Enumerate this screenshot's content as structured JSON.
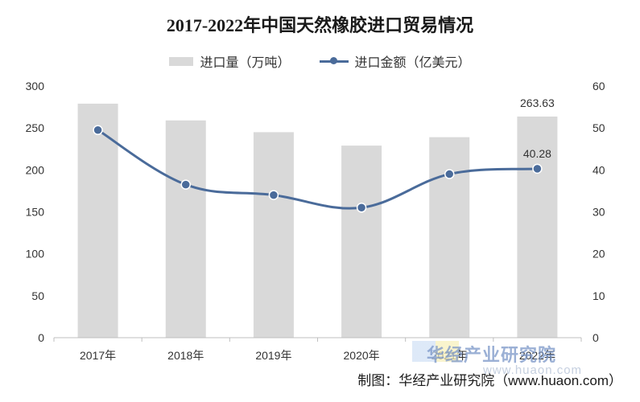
{
  "chart_data": {
    "type": "bar",
    "title": "2017-2022年中国天然橡胶进口贸易情况",
    "categories": [
      "2017年",
      "2018年",
      "2019年",
      "2020年",
      "2021年",
      "2022年"
    ],
    "series": [
      {
        "name": "进口量（万吨）",
        "type": "bar",
        "axis": "left",
        "values": [
          279,
          259,
          245,
          229,
          239,
          263.63
        ],
        "color": "#d9d9d9"
      },
      {
        "name": "进口金额（亿美元）",
        "type": "line",
        "axis": "right",
        "values": [
          49.5,
          36.5,
          34,
          31,
          39,
          40.28
        ],
        "color": "#4a6b9a"
      }
    ],
    "y_left": {
      "min": 0,
      "max": 300,
      "ticks": [
        "0",
        "50",
        "100",
        "150",
        "200",
        "250",
        "300"
      ]
    },
    "y_right": {
      "min": 0,
      "max": 60,
      "ticks": [
        "0",
        "10",
        "20",
        "30",
        "40",
        "50",
        "60"
      ]
    },
    "data_labels": {
      "bar_last": "263.63",
      "line_last": "40.28"
    },
    "legend_position": "top-center",
    "grid": false
  },
  "watermark": {
    "text": "华经产业研究院",
    "url": "www.huaon.com"
  },
  "footer": {
    "source": "制图：华经产业研究院（www.huaon.com）"
  }
}
